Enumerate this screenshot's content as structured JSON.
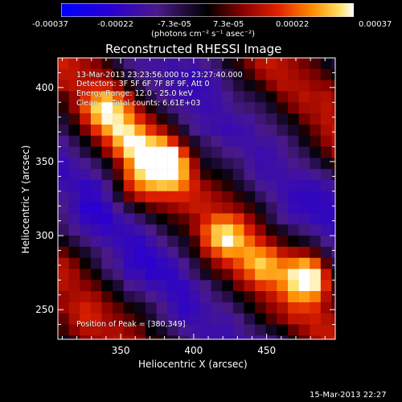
{
  "colorbar": {
    "ticks": [
      "-0.00037",
      "-0.00022",
      "-7.3e-05",
      "7.3e-05",
      "0.00022",
      "0.00037"
    ],
    "unit_label": "(photons cm⁻² s⁻¹ asec⁻²)",
    "min": -0.00037,
    "max": 0.00037
  },
  "image_info": {
    "time_range": "13-Mar-2013 23:23:56.000 to 23:27:40.000",
    "detectors": "Detectors: 3F 5F 6F 7F 8F 9F, Att 0",
    "energy_range": "Energy Range: 12.0 - 25.0 keV",
    "clean_label": "Clean",
    "total_counts": "Total counts: 6.61E+03",
    "peak_label": "Position of Peak = [380,349]"
  },
  "footer": {
    "timestamp": "15-Mar-2013 22:27"
  },
  "chart_data": {
    "type": "heatmap",
    "title": "Reconstructed RHESSI Image",
    "xlabel": "Heliocentric X (arcsec)",
    "ylabel": "Heliocentric Y (arcsec)",
    "xlim": [
      307,
      497
    ],
    "ylim": [
      230,
      420
    ],
    "xticks": [
      350,
      400,
      450
    ],
    "yticks": [
      250,
      300,
      350,
      400
    ],
    "grid": false,
    "value_range": [
      -0.00037,
      0.00037
    ],
    "peak_position": [
      380,
      349
    ],
    "bright_sources": [
      {
        "x": 380,
        "y": 349,
        "relative_intensity": 1.0
      },
      {
        "x": 478,
        "y": 273,
        "relative_intensity": 0.95
      },
      {
        "x": 340,
        "y": 384,
        "relative_intensity": 0.6
      },
      {
        "x": 420,
        "y": 300,
        "relative_intensity": 0.55
      },
      {
        "x": 447,
        "y": 281,
        "relative_intensity": 0.5
      },
      {
        "x": 355,
        "y": 365,
        "relative_intensity": 0.55
      },
      {
        "x": 362,
        "y": 336,
        "relative_intensity": 0.4
      }
    ]
  }
}
